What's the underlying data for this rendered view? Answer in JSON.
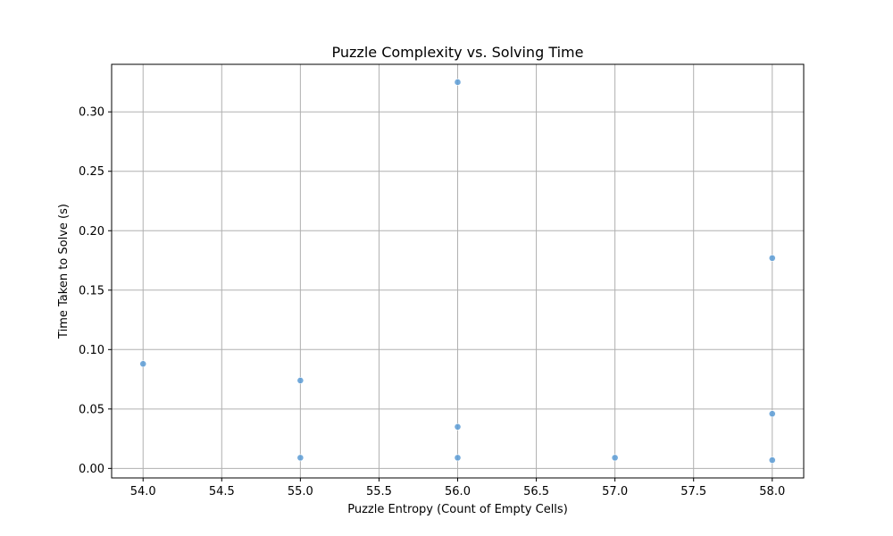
{
  "chart_data": {
    "type": "scatter",
    "title": "Puzzle Complexity vs. Solving Time",
    "xlabel": "Puzzle Entropy (Count of Empty Cells)",
    "ylabel": "Time Taken to Solve (s)",
    "xlim": [
      53.8,
      58.2
    ],
    "ylim": [
      -0.008,
      0.34
    ],
    "x_ticks": [
      54.0,
      54.5,
      55.0,
      55.5,
      56.0,
      56.5,
      57.0,
      57.5,
      58.0
    ],
    "x_tick_labels": [
      "54.0",
      "54.5",
      "55.0",
      "55.5",
      "56.0",
      "56.5",
      "57.0",
      "57.5",
      "58.0"
    ],
    "y_ticks": [
      0.0,
      0.05,
      0.1,
      0.15,
      0.2,
      0.25,
      0.3
    ],
    "y_tick_labels": [
      "0.00",
      "0.05",
      "0.10",
      "0.15",
      "0.20",
      "0.25",
      "0.30"
    ],
    "grid": true,
    "point_color": "#5b9bd5",
    "points": [
      {
        "x": 54,
        "y": 0.088
      },
      {
        "x": 55,
        "y": 0.074
      },
      {
        "x": 55,
        "y": 0.009
      },
      {
        "x": 56,
        "y": 0.325
      },
      {
        "x": 56,
        "y": 0.035
      },
      {
        "x": 56,
        "y": 0.009
      },
      {
        "x": 57,
        "y": 0.009
      },
      {
        "x": 58,
        "y": 0.177
      },
      {
        "x": 58,
        "y": 0.046
      },
      {
        "x": 58,
        "y": 0.007
      }
    ]
  }
}
